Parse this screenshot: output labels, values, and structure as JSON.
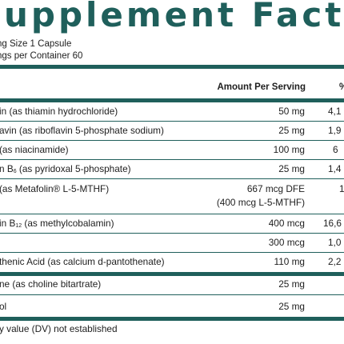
{
  "header": {
    "title": "upplement Fact",
    "serving_size": "ng Size 1 Capsule",
    "servings_per_container": "ngs per Container 60"
  },
  "table": {
    "col_amount": "Amount Per Serving",
    "col_dv": "%",
    "rows": [
      {
        "name": "in (as thiamin hydrochloride)",
        "amount": "50 mg",
        "dv": "4,1"
      },
      {
        "name": "avin (as riboflavin 5-phosphate sodium)",
        "amount": "25 mg",
        "dv": "1,9"
      },
      {
        "name": "(as niacinamide)",
        "amount": "100 mg",
        "dv": "6"
      },
      {
        "name": "n B",
        "name_sub": "6",
        "name_rest": " (as pyridoxal 5-phosphate)",
        "amount": "25 mg",
        "dv": "1,4"
      },
      {
        "name": " (as Metafolin® L-5-MTHF)",
        "amount": "667 mcg DFE",
        "amount_line2": "(400 mcg L-5-MTHF)",
        "dv": "1"
      },
      {
        "name": "in B",
        "name_sub": "12",
        "name_rest": " (as methylcobalamin)",
        "amount": "400 mcg",
        "dv": "16,6"
      },
      {
        "name": "",
        "amount": "300 mcg",
        "dv": "1,0"
      },
      {
        "name": "thenic Acid (as calcium d-pantothenate)",
        "amount": "110 mg",
        "dv": "2,2"
      },
      {
        "name": "ne (as choline bitartrate)",
        "amount": "25 mg",
        "dv": ""
      },
      {
        "name": "ol",
        "amount": "25 mg",
        "dv": ""
      }
    ],
    "footnote": "y value (DV) not established"
  },
  "colors": {
    "brand": "#1f5f5b",
    "text": "#1e1e1e"
  }
}
